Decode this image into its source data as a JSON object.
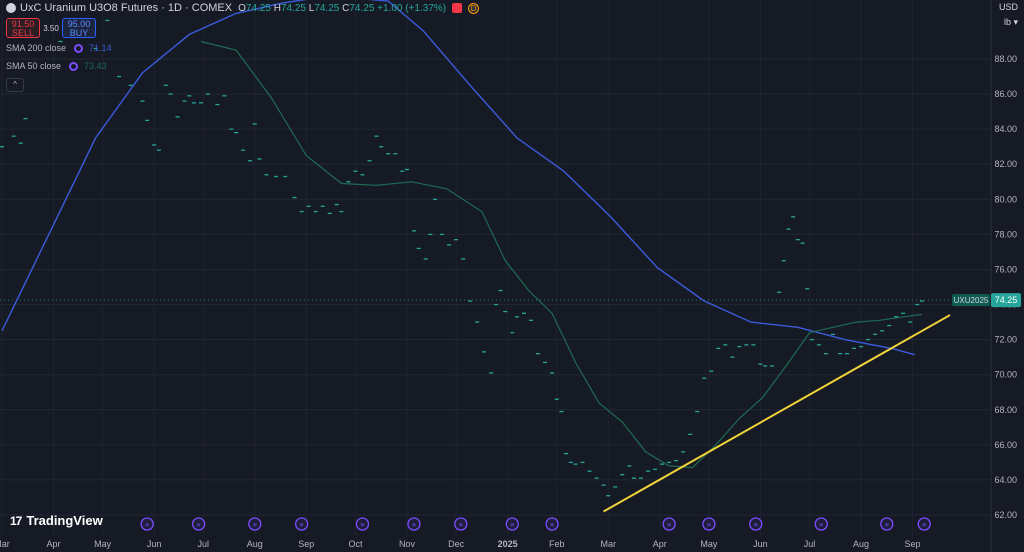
{
  "header": {
    "title": "UxC Uranium U3O8 Futures · 1D · COMEX",
    "ohlc": {
      "o_label": "O",
      "o": "74.25",
      "h_label": "H",
      "h": "74.25",
      "l_label": "L",
      "l": "74.25",
      "c_label": "C",
      "c": "74.25",
      "change": "+1.00 (+1.37%)"
    },
    "badge_red": "",
    "badge_orange": "D"
  },
  "trade": {
    "sell_price": "91.50",
    "sell_label": "SELL",
    "spread": "3.50",
    "buy_price": "95.00",
    "buy_label": "BUY"
  },
  "indicators": [
    {
      "name": "SMA 200 close",
      "value": "71.14",
      "color": "#3b5bdb"
    },
    {
      "name": "SMA 50 close",
      "value": "73.43",
      "color": "#1e6b52"
    }
  ],
  "top_right": {
    "currency": "USD",
    "unit": "lb"
  },
  "branding": {
    "logo_mark": "17",
    "logo_text": "TradingView"
  },
  "colors": {
    "background": "#161a25",
    "price": "#26a69a",
    "sma200": "#3b5bdb",
    "sma50": "#1e6b52",
    "trendline": "#f0d43a",
    "event": "#7b4dff"
  },
  "chart_data": {
    "type": "line",
    "symbol_label": "UXU2025",
    "last_price": 74.25,
    "ylim": [
      61,
      91
    ],
    "y_ticks": [
      62,
      64,
      66,
      68,
      70,
      72,
      74,
      76,
      78,
      80,
      82,
      84,
      86,
      88
    ],
    "y_tick_labels": [
      "62.00",
      "64.00",
      "66.00",
      "68.00",
      "70.00",
      "72.00",
      "74.00",
      "76.00",
      "78.00",
      "80.00",
      "82.00",
      "84.00",
      "86.00",
      "88.00"
    ],
    "x_labels": [
      "Mar",
      "Apr",
      "May",
      "Jun",
      "Jul",
      "Aug",
      "Sep",
      "Oct",
      "Nov",
      "Dec",
      "2025",
      "Feb",
      "Mar",
      "Apr",
      "May",
      "Jun",
      "Jul",
      "Aug",
      "Sep"
    ],
    "x_label_index": [
      0,
      22,
      43,
      65,
      86,
      108,
      130,
      151,
      173,
      194,
      216,
      237,
      259,
      281,
      302,
      324,
      345,
      367,
      389
    ],
    "x_last_index": 405,
    "price_series": {
      "name": "Close",
      "points": [
        [
          0,
          83.0
        ],
        [
          5,
          83.6
        ],
        [
          8,
          83.2
        ],
        [
          10,
          84.6
        ],
        [
          25,
          89.0
        ],
        [
          30,
          90.0
        ],
        [
          35,
          89.8
        ],
        [
          40,
          88.6
        ],
        [
          45,
          90.2
        ],
        [
          50,
          87.0
        ],
        [
          55,
          86.5
        ],
        [
          60,
          85.6
        ],
        [
          62,
          84.5
        ],
        [
          65,
          83.1
        ],
        [
          67,
          82.8
        ],
        [
          70,
          86.5
        ],
        [
          72,
          86.0
        ],
        [
          75,
          84.7
        ],
        [
          78,
          85.6
        ],
        [
          80,
          85.9
        ],
        [
          82,
          85.5
        ],
        [
          85,
          85.5
        ],
        [
          88,
          86.0
        ],
        [
          92,
          85.4
        ],
        [
          95,
          85.9
        ],
        [
          98,
          84.0
        ],
        [
          100,
          83.8
        ],
        [
          103,
          82.8
        ],
        [
          106,
          82.2
        ],
        [
          108,
          84.3
        ],
        [
          110,
          82.3
        ],
        [
          113,
          81.4
        ],
        [
          117,
          81.3
        ],
        [
          121,
          81.3
        ],
        [
          125,
          80.1
        ],
        [
          128,
          79.3
        ],
        [
          131,
          79.6
        ],
        [
          134,
          79.3
        ],
        [
          137,
          79.6
        ],
        [
          140,
          79.2
        ],
        [
          143,
          79.7
        ],
        [
          145,
          79.3
        ],
        [
          148,
          81.0
        ],
        [
          151,
          81.6
        ],
        [
          154,
          81.4
        ],
        [
          157,
          82.2
        ],
        [
          160,
          83.6
        ],
        [
          162,
          83.0
        ],
        [
          165,
          82.6
        ],
        [
          168,
          82.6
        ],
        [
          171,
          81.6
        ],
        [
          173,
          81.7
        ],
        [
          176,
          78.2
        ],
        [
          178,
          77.2
        ],
        [
          181,
          76.6
        ],
        [
          183,
          78.0
        ],
        [
          185,
          80.0
        ],
        [
          188,
          78.0
        ],
        [
          191,
          77.4
        ],
        [
          194,
          77.7
        ],
        [
          197,
          76.6
        ],
        [
          200,
          74.2
        ],
        [
          203,
          73.0
        ],
        [
          206,
          71.3
        ],
        [
          209,
          70.1
        ],
        [
          211,
          74.0
        ],
        [
          213,
          74.8
        ],
        [
          215,
          73.6
        ],
        [
          218,
          72.4
        ],
        [
          220,
          73.3
        ],
        [
          223,
          73.5
        ],
        [
          226,
          73.1
        ],
        [
          229,
          71.2
        ],
        [
          232,
          70.7
        ],
        [
          235,
          70.1
        ],
        [
          237,
          68.6
        ],
        [
          239,
          67.9
        ],
        [
          241,
          65.5
        ],
        [
          243,
          65.0
        ],
        [
          245,
          64.9
        ],
        [
          248,
          65.0
        ],
        [
          251,
          64.5
        ],
        [
          254,
          64.1
        ],
        [
          257,
          63.7
        ],
        [
          259,
          63.1
        ],
        [
          262,
          63.6
        ],
        [
          265,
          64.3
        ],
        [
          268,
          64.8
        ],
        [
          270,
          64.1
        ],
        [
          273,
          64.1
        ],
        [
          276,
          64.5
        ],
        [
          279,
          64.6
        ],
        [
          282,
          64.9
        ],
        [
          285,
          65.0
        ],
        [
          288,
          65.1
        ],
        [
          291,
          65.6
        ],
        [
          294,
          66.6
        ],
        [
          297,
          67.9
        ],
        [
          300,
          69.8
        ],
        [
          303,
          70.2
        ],
        [
          306,
          71.5
        ],
        [
          309,
          71.7
        ],
        [
          312,
          71.0
        ],
        [
          315,
          71.6
        ],
        [
          318,
          71.7
        ],
        [
          321,
          71.7
        ],
        [
          324,
          70.6
        ],
        [
          326,
          70.5
        ],
        [
          329,
          70.5
        ],
        [
          332,
          74.7
        ],
        [
          334,
          76.5
        ],
        [
          336,
          78.3
        ],
        [
          338,
          79.0
        ],
        [
          340,
          77.7
        ],
        [
          342,
          77.5
        ],
        [
          344,
          74.9
        ],
        [
          346,
          72.0
        ],
        [
          349,
          71.7
        ],
        [
          352,
          71.2
        ],
        [
          355,
          72.3
        ],
        [
          358,
          71.2
        ],
        [
          361,
          71.2
        ],
        [
          364,
          71.5
        ],
        [
          367,
          71.6
        ],
        [
          370,
          72.0
        ],
        [
          373,
          72.3
        ],
        [
          376,
          72.5
        ],
        [
          379,
          72.8
        ],
        [
          382,
          73.3
        ],
        [
          385,
          73.5
        ],
        [
          388,
          73.0
        ],
        [
          391,
          74.0
        ],
        [
          393,
          74.2
        ]
      ]
    },
    "sma200": {
      "name": "SMA 200 close",
      "points": [
        [
          0,
          72.5
        ],
        [
          20,
          78.0
        ],
        [
          40,
          83.5
        ],
        [
          60,
          87.2
        ],
        [
          80,
          89.4
        ],
        [
          100,
          90.6
        ],
        [
          120,
          91.2
        ],
        [
          140,
          91.6
        ],
        [
          165,
          91.3
        ],
        [
          180,
          89.6
        ],
        [
          200,
          86.5
        ],
        [
          220,
          83.5
        ],
        [
          240,
          81.6
        ],
        [
          260,
          79.0
        ],
        [
          280,
          76.1
        ],
        [
          300,
          74.2
        ],
        [
          320,
          73.0
        ],
        [
          340,
          72.7
        ],
        [
          360,
          72.0
        ],
        [
          380,
          71.5
        ],
        [
          390,
          71.14
        ]
      ]
    },
    "sma50": {
      "name": "SMA 50 close",
      "points": [
        [
          85,
          89.0
        ],
        [
          100,
          88.5
        ],
        [
          115,
          85.8
        ],
        [
          130,
          82.5
        ],
        [
          145,
          80.9
        ],
        [
          160,
          80.8
        ],
        [
          175,
          81.0
        ],
        [
          190,
          80.6
        ],
        [
          205,
          79.3
        ],
        [
          215,
          76.5
        ],
        [
          225,
          74.8
        ],
        [
          235,
          73.5
        ],
        [
          245,
          70.7
        ],
        [
          255,
          68.4
        ],
        [
          265,
          67.3
        ],
        [
          275,
          65.6
        ],
        [
          285,
          64.8
        ],
        [
          295,
          64.7
        ],
        [
          305,
          66.0
        ],
        [
          315,
          67.5
        ],
        [
          325,
          68.7
        ],
        [
          335,
          70.5
        ],
        [
          345,
          72.4
        ],
        [
          355,
          72.7
        ],
        [
          365,
          73.0
        ],
        [
          375,
          73.1
        ],
        [
          385,
          73.3
        ],
        [
          393,
          73.43
        ]
      ]
    },
    "trendline": {
      "name": "",
      "from": [
        257,
        62.2
      ],
      "to": [
        405,
        73.4
      ]
    },
    "event_marker_index": [
      62,
      84,
      108,
      128,
      154,
      176,
      196,
      218,
      235,
      285,
      302,
      322,
      350,
      378,
      394
    ]
  }
}
